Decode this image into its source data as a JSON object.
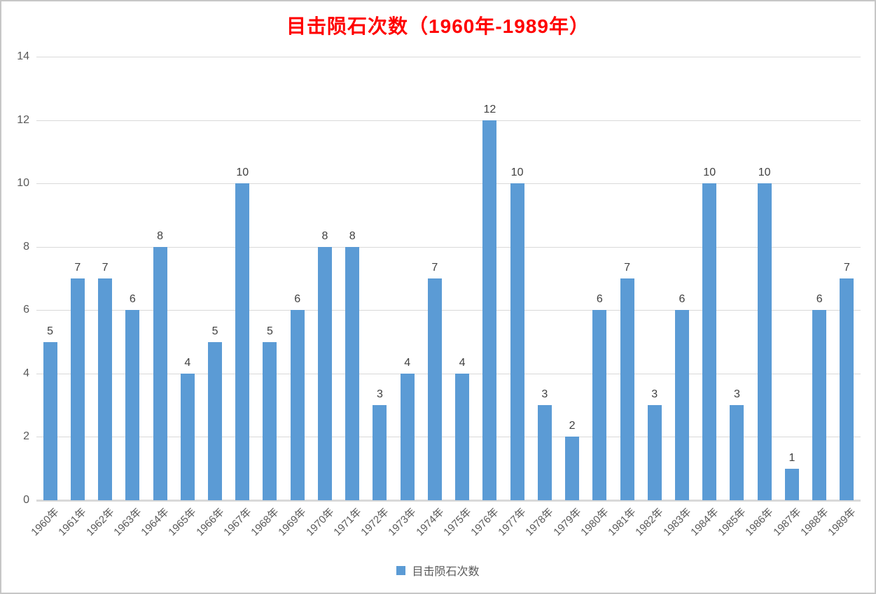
{
  "title": "目击陨石次数（1960年-1989年）",
  "legend": {
    "label": "目击陨石次数"
  },
  "colors": {
    "bar": "#5B9BD5",
    "title": "#FF0000",
    "gridline": "#D9D9D9",
    "axis_line": "#D9D9D9",
    "axis_text": "#595959",
    "data_label": "#404040",
    "frame_border": "#C6C6C6"
  },
  "chart_data": {
    "type": "bar",
    "title": "目击陨石次数（1960年-1989年）",
    "series_name": "目击陨石次数",
    "categories": [
      "1960年",
      "1961年",
      "1962年",
      "1963年",
      "1964年",
      "1965年",
      "1966年",
      "1967年",
      "1968年",
      "1969年",
      "1970年",
      "1971年",
      "1972年",
      "1973年",
      "1974年",
      "1975年",
      "1976年",
      "1977年",
      "1978年",
      "1979年",
      "1980年",
      "1981年",
      "1982年",
      "1983年",
      "1984年",
      "1985年",
      "1986年",
      "1987年",
      "1988年",
      "1989年"
    ],
    "values": [
      5,
      7,
      7,
      6,
      8,
      4,
      5,
      10,
      5,
      6,
      8,
      8,
      3,
      4,
      7,
      4,
      12,
      10,
      3,
      2,
      6,
      7,
      3,
      6,
      10,
      3,
      10,
      1,
      6,
      7
    ],
    "xlabel": "",
    "ylabel": "",
    "ylim": [
      0,
      14
    ],
    "yticks": [
      0,
      2,
      4,
      6,
      8,
      10,
      12,
      14
    ],
    "grid": true,
    "data_labels": true,
    "legend_position": "bottom",
    "bar_color": "#5B9BD5"
  }
}
